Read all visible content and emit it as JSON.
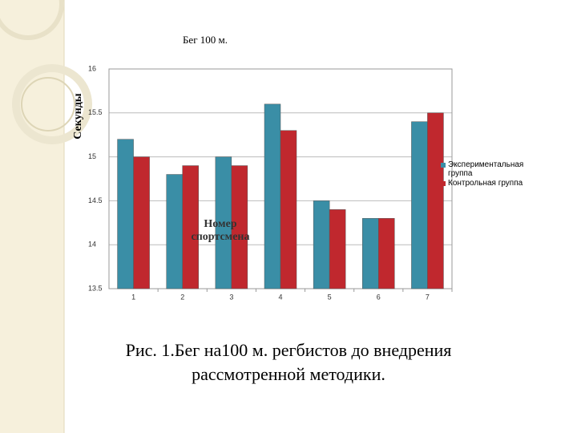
{
  "chart_data": {
    "type": "bar",
    "title": "Бег 100 м.",
    "y_label": "Секунды",
    "x_label": "Номер спортсмена",
    "categories": [
      "1",
      "2",
      "3",
      "4",
      "5",
      "6",
      "7"
    ],
    "series": [
      {
        "name": "Экспериментальная группа",
        "color": "#3a8ea6",
        "values": [
          15.2,
          14.8,
          15.0,
          15.6,
          14.5,
          14.3,
          15.4
        ]
      },
      {
        "name": "Контрольная группа",
        "color": "#c0282e",
        "values": [
          15.0,
          14.9,
          14.9,
          15.3,
          14.4,
          14.3,
          15.5
        ]
      }
    ],
    "ylim": [
      13.5,
      16
    ],
    "yticks": [
      13.5,
      14,
      14.5,
      15,
      15.5,
      16
    ],
    "grid": true,
    "legend": "right",
    "caption": "Рис. 1.Бег на100 м. регбистов до внедрения рассмотренной методики."
  }
}
